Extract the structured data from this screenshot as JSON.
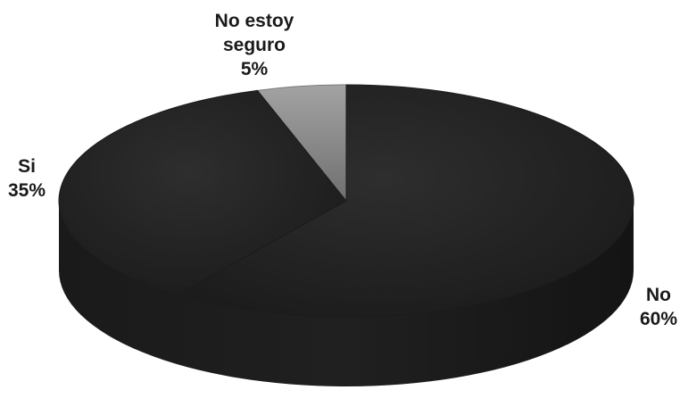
{
  "chart_data": {
    "type": "pie",
    "style": "3d",
    "title": "",
    "slices": [
      {
        "label_lines": [
          "No estoy",
          "seguro"
        ],
        "label": "No estoy seguro",
        "value": 5,
        "value_text": "5%",
        "color": "#8c8c8c"
      },
      {
        "label_lines": [
          "Si"
        ],
        "label": "Si",
        "value": 35,
        "value_text": "35%",
        "color": "#262626"
      },
      {
        "label_lines": [
          "No"
        ],
        "label": "No",
        "value": 60,
        "value_text": "60%",
        "color": "#262626"
      }
    ],
    "legend": "none",
    "background": "#ffffff"
  }
}
